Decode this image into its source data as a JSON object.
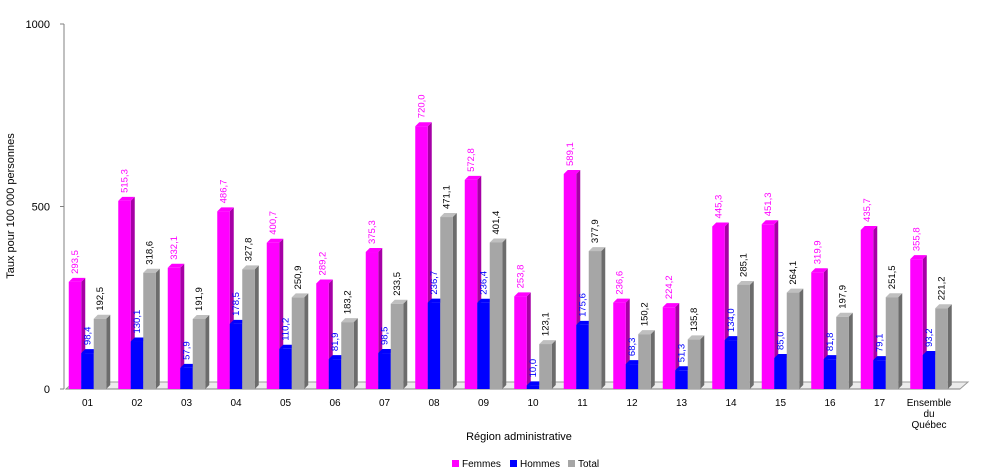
{
  "chart_data": {
    "type": "bar",
    "title": "",
    "xlabel": "Région administrative",
    "ylabel": "Taux pour 100 000 personnes",
    "ylim": [
      0,
      1000
    ],
    "yticks": [
      "0",
      "500",
      "1000"
    ],
    "categories": [
      "01",
      "02",
      "03",
      "04",
      "05",
      "06",
      "07",
      "08",
      "09",
      "10",
      "11",
      "12",
      "13",
      "14",
      "15",
      "16",
      "17",
      "Ensemble du Québec"
    ],
    "category_lines": [
      [
        "01"
      ],
      [
        "02"
      ],
      [
        "03"
      ],
      [
        "04"
      ],
      [
        "05"
      ],
      [
        "06"
      ],
      [
        "07"
      ],
      [
        "08"
      ],
      [
        "09"
      ],
      [
        "10"
      ],
      [
        "11"
      ],
      [
        "12"
      ],
      [
        "13"
      ],
      [
        "14"
      ],
      [
        "15"
      ],
      [
        "16"
      ],
      [
        "17"
      ],
      [
        "Ensemble",
        "du",
        "Québec"
      ]
    ],
    "series": [
      {
        "name": "Femmes",
        "color": "#ff00ff",
        "values": [
          293.5,
          515.3,
          332.1,
          486.7,
          400.7,
          289.2,
          375.3,
          720.0,
          572.8,
          253.8,
          589.1,
          236.6,
          224.2,
          445.3,
          451.3,
          319.9,
          435.7,
          355.8
        ],
        "labels": [
          "293,5",
          "515,3",
          "332,1",
          "486,7",
          "400,7",
          "289,2",
          "375,3",
          "720,0",
          "572,8",
          "253,8",
          "589,1",
          "236,6",
          "224,2",
          "445,3",
          "451,3",
          "319,9",
          "435,7",
          "355,8"
        ]
      },
      {
        "name": "Hommes",
        "color": "#0000ff",
        "values": [
          98.4,
          130.1,
          57.9,
          178.5,
          110.2,
          81.9,
          98.5,
          236.7,
          236.4,
          10.0,
          175.6,
          68.3,
          51.3,
          134.0,
          85.0,
          81.8,
          79.1,
          93.2
        ],
        "labels": [
          "98,4",
          "130,1",
          "57,9",
          "178,5",
          "110,2",
          "81,9",
          "98,5",
          "236,7",
          "236,4",
          "10,0",
          "175,6",
          "68,3",
          "51,3",
          "134,0",
          "85,0",
          "81,8",
          "79,1",
          "93,2"
        ]
      },
      {
        "name": "Total",
        "color": "#a6a6a6",
        "values": [
          192.5,
          318.6,
          191.9,
          327.8,
          250.9,
          183.2,
          233.5,
          471.1,
          401.4,
          123.1,
          377.9,
          150.2,
          135.8,
          285.1,
          264.1,
          197.9,
          251.5,
          221.2
        ],
        "labels": [
          "192,5",
          "318,6",
          "191,9",
          "327,8",
          "250,9",
          "183,2",
          "233,5",
          "471,1",
          "401,4",
          "123,1",
          "377,9",
          "150,2",
          "135,8",
          "285,1",
          "264,1",
          "197,9",
          "251,5",
          "221,2"
        ]
      }
    ],
    "legend_position": "bottom-center",
    "grid": false
  }
}
